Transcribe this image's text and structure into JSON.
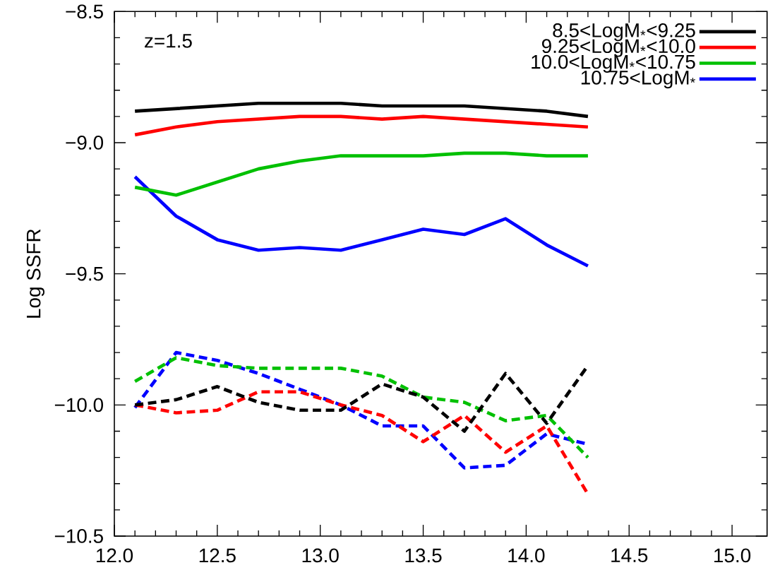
{
  "chart_data": {
    "type": "line",
    "ylabel": "Log SSFR",
    "annotations": [
      "z=1.5"
    ],
    "legend": "top right",
    "xlim": [
      12.0,
      15.17
    ],
    "ylim": [
      -10.5,
      -8.5
    ],
    "xticks": [
      {
        "value": 12.0,
        "label": "12.0"
      },
      {
        "value": 12.5,
        "label": "12.5"
      },
      {
        "value": 13.0,
        "label": "13.0"
      },
      {
        "value": 13.5,
        "label": "13.5"
      },
      {
        "value": 14.0,
        "label": "14.0"
      },
      {
        "value": 14.5,
        "label": "14.5"
      },
      {
        "value": 15.0,
        "label": "15.0"
      }
    ],
    "yticks": [
      {
        "value": -8.5,
        "label": "−8.5"
      },
      {
        "value": -9.0,
        "label": "−9.0"
      },
      {
        "value": -9.5,
        "label": "−9.5"
      },
      {
        "value": -10.0,
        "label": "−10.0"
      },
      {
        "value": -10.5,
        "label": "−10.5"
      }
    ],
    "x": [
      12.1,
      12.3,
      12.5,
      12.7,
      12.9,
      13.1,
      13.3,
      13.5,
      13.7,
      13.9,
      14.1,
      14.3
    ],
    "series": [
      {
        "name": "8.5<LogM$_{*}$<9.25",
        "color": "#000000",
        "line_style": "solid",
        "values": [
          -8.88,
          -8.87,
          -8.86,
          -8.85,
          -8.85,
          -8.85,
          -8.86,
          -8.86,
          -8.86,
          -8.87,
          -8.88,
          -8.9
        ]
      },
      {
        "name": "9.25<LogM$_{*}$<10.0",
        "color": "#ff0000",
        "line_style": "solid",
        "values": [
          -8.97,
          -8.94,
          -8.92,
          -8.91,
          -8.9,
          -8.9,
          -8.91,
          -8.9,
          -8.91,
          -8.92,
          -8.93,
          -8.94
        ]
      },
      {
        "name": "10.0<LogM$_{*}$<10.75",
        "color": "#00c000",
        "line_style": "solid",
        "values": [
          -9.17,
          -9.2,
          -9.15,
          -9.1,
          -9.07,
          -9.05,
          -9.05,
          -9.05,
          -9.04,
          -9.04,
          -9.05,
          -9.05
        ]
      },
      {
        "name": "10.75<LogM$_{*}$",
        "color": "#0000ff",
        "line_style": "solid",
        "values": [
          -9.13,
          -9.28,
          -9.37,
          -9.41,
          -9.4,
          -9.41,
          -9.37,
          -9.33,
          -9.35,
          -9.29,
          -9.39,
          -9.47
        ]
      },
      {
        "color": "#000000",
        "line_style": "dashed",
        "values": [
          -10.0,
          -9.98,
          -9.93,
          -9.99,
          -10.02,
          -10.02,
          -9.92,
          -9.97,
          -10.1,
          -9.88,
          -10.07,
          -9.85
        ]
      },
      {
        "color": "#ff0000",
        "line_style": "dashed",
        "values": [
          -10.0,
          -10.03,
          -10.02,
          -9.95,
          -9.95,
          -10.0,
          -10.04,
          -10.14,
          -10.04,
          -10.18,
          -10.08,
          -10.34
        ]
      },
      {
        "color": "#00c000",
        "line_style": "dashed",
        "values": [
          -9.91,
          -9.82,
          -9.85,
          -9.86,
          -9.86,
          -9.86,
          -9.89,
          -9.97,
          -9.99,
          -10.06,
          -10.04,
          -10.2
        ]
      },
      {
        "color": "#0000ff",
        "line_style": "dashed",
        "values": [
          -10.01,
          -9.8,
          -9.83,
          -9.88,
          -9.94,
          -10.0,
          -10.08,
          -10.08,
          -10.24,
          -10.23,
          -10.11,
          -10.15
        ]
      }
    ]
  }
}
